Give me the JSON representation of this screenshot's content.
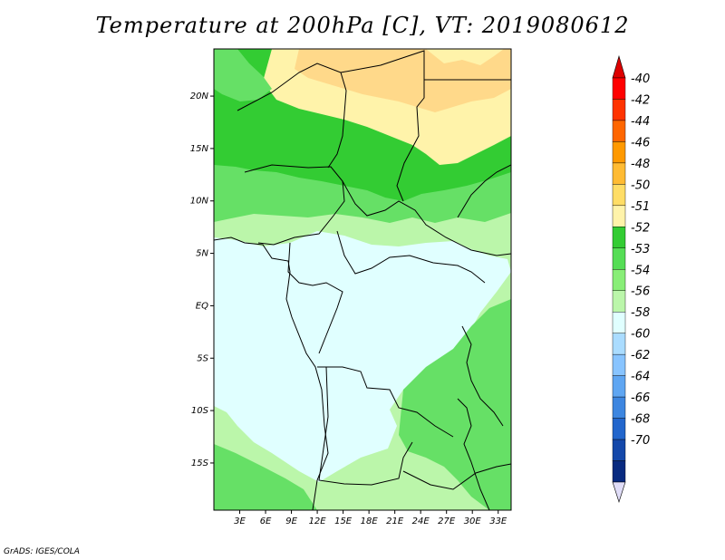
{
  "title": "Temperature at 200hPa [C], VT: 2019080612",
  "credit": "GrADS: IGES/COLA",
  "lat_labels": [
    "20N",
    "15N",
    "10N",
    "5N",
    "EQ",
    "5S",
    "10S",
    "15S"
  ],
  "lon_labels": [
    "3E",
    "6E",
    "9E",
    "12E",
    "15E",
    "18E",
    "21E",
    "24E",
    "27E",
    "30E",
    "33E"
  ],
  "map_extent": {
    "lon_min": 0,
    "lon_max": 34.5,
    "lat_min": -19.5,
    "lat_max": 24.5
  },
  "colorbar": {
    "labels": [
      "-40",
      "-42",
      "-44",
      "-46",
      "-48",
      "-50",
      "-51",
      "-52",
      "-53",
      "-54",
      "-56",
      "-58",
      "-60",
      "-62",
      "-64",
      "-66",
      "-68",
      "-70"
    ],
    "colors": [
      "#ff0000",
      "#ff3300",
      "#ff6600",
      "#ff9900",
      "#ffbb33",
      "#ffdd66",
      "#fff3aa",
      "#33cc33",
      "#55dd55",
      "#88ee77",
      "#bbf6aa",
      "#e0ffff",
      "#aadcff",
      "#88c4ff",
      "#5fa6f2",
      "#3d86e0",
      "#2266cc",
      "#1448aa",
      "#082a80"
    ],
    "top_triangle_color": "#dd0000",
    "bottom_triangle_color": "#e0ddf8"
  },
  "fill_colors": {
    "yellow_warm": "#ffd98a",
    "yellow_pale": "#fff3aa",
    "green_dark": "#33cc33",
    "green_mid": "#66e066",
    "green_light": "#bbf6aa",
    "cyan_pale": "#e0ffff"
  }
}
